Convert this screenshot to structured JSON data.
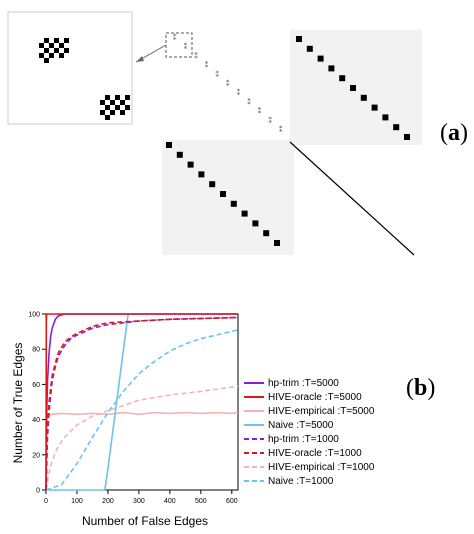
{
  "panels": {
    "a": {
      "label_open": "(",
      "label_letter": "a",
      "label_close": ")"
    },
    "b": {
      "label_open": "(",
      "label_letter": "b",
      "label_close": ")"
    }
  },
  "colors": {
    "purple": "#8a1ee0",
    "red": "#e01818",
    "pink": "#f4b4b4",
    "lightblue": "#6cc4ea",
    "grid_bg": "#f2f2f2",
    "black": "#000000"
  },
  "chart_data": {
    "type": "line",
    "title": "",
    "xlabel": "Number of False Edges",
    "ylabel": "Number of True Edges",
    "xlim": [
      0,
      620
    ],
    "ylim": [
      0,
      100
    ],
    "xticks": [
      0,
      100,
      200,
      300,
      400,
      500,
      600
    ],
    "yticks": [
      0,
      20,
      40,
      60,
      80,
      100
    ],
    "legend_position": "right",
    "series": [
      {
        "name": "hp-trim :T=5000",
        "color": "#8a1ee0",
        "dash": "solid",
        "x": [
          0,
          2,
          5,
          10,
          15,
          20,
          30,
          40,
          60,
          620
        ],
        "y": [
          0,
          40,
          62,
          78,
          87,
          92,
          97,
          99,
          100,
          100
        ]
      },
      {
        "name": "HIVE-oracle :T=5000",
        "color": "#e01818",
        "dash": "solid",
        "x": [
          0,
          0.5,
          1,
          2,
          620
        ],
        "y": [
          0,
          60,
          95,
          100,
          100
        ]
      },
      {
        "name": "HIVE-empirical :T=5000",
        "color": "#f4b4b4",
        "dash": "solid",
        "x": [
          0,
          1,
          3,
          20,
          50,
          100,
          150,
          200,
          250,
          300,
          350,
          400,
          450,
          500,
          550,
          600,
          620
        ],
        "y": [
          0,
          30,
          43,
          43,
          43.5,
          43,
          43.5,
          43,
          44,
          43,
          44,
          43.5,
          44,
          43.5,
          44,
          43.5,
          44
        ]
      },
      {
        "name": "Naive :T=5000",
        "color": "#6cc4ea",
        "dash": "solid",
        "x": [
          0,
          190,
          200,
          265
        ],
        "y": [
          0,
          0,
          12,
          100
        ]
      },
      {
        "name": "hp-trim :T=1000",
        "color": "#8a1ee0",
        "dash": "dashed",
        "x": [
          0,
          5,
          10,
          20,
          30,
          40,
          60,
          80,
          100,
          150,
          200,
          300,
          400,
          620
        ],
        "y": [
          0,
          30,
          45,
          62,
          70,
          76,
          82,
          86,
          88,
          92,
          94,
          96,
          97,
          98
        ]
      },
      {
        "name": "HIVE-oracle :T=1000",
        "color": "#e01818",
        "dash": "dashed",
        "x": [
          0,
          5,
          10,
          20,
          30,
          40,
          60,
          80,
          100,
          150,
          200,
          300,
          400,
          620
        ],
        "y": [
          0,
          35,
          50,
          65,
          72,
          78,
          84,
          87,
          89,
          93,
          95,
          96,
          97,
          98
        ]
      },
      {
        "name": "HIVE-empirical :T=1000",
        "color": "#f4b4b4",
        "dash": "dashed",
        "x": [
          0,
          10,
          20,
          40,
          60,
          100,
          150,
          200,
          250,
          300,
          400,
          500,
          620
        ],
        "y": [
          0,
          10,
          17,
          25,
          30,
          37,
          42,
          45,
          48,
          51,
          54,
          56,
          59
        ]
      },
      {
        "name": "Naive :T=1000",
        "color": "#6cc4ea",
        "dash": "dashed",
        "x": [
          0,
          50,
          100,
          150,
          200,
          250,
          300,
          350,
          400,
          450,
          500,
          550,
          620
        ],
        "y": [
          0,
          3,
          15,
          30,
          44,
          56,
          66,
          73,
          79,
          83,
          86,
          88,
          91
        ]
      }
    ]
  }
}
